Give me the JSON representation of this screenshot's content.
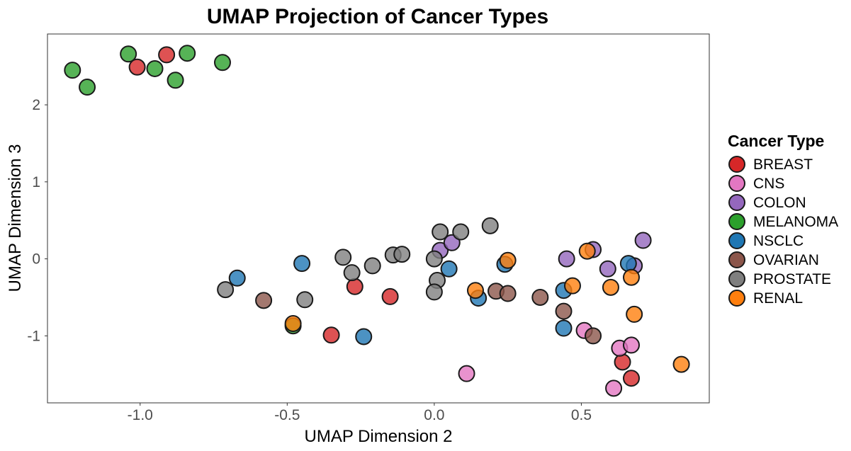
{
  "chart_data": {
    "type": "scatter",
    "title": "UMAP Projection of Cancer Types",
    "xlabel": "UMAP Dimension 2",
    "ylabel": "UMAP Dimension 3",
    "xlim": [
      -1.315,
      0.935
    ],
    "ylim": [
      -1.87,
      2.92
    ],
    "xticks": [
      -1.0,
      -0.5,
      0.0,
      0.5
    ],
    "xtick_labels": [
      "-1.0",
      "-0.5",
      "0.0",
      "0.5"
    ],
    "yticks": [
      -1,
      0,
      1,
      2
    ],
    "ytick_labels": [
      "-1",
      "0",
      "1",
      "2"
    ],
    "grid": false,
    "legend": {
      "title": "Cancer Type",
      "placement": "right"
    },
    "series": [
      {
        "name": "BREAST",
        "color": "#d62728",
        "points": [
          {
            "x": -1.01,
            "y": 2.49
          },
          {
            "x": -0.91,
            "y": 2.65
          },
          {
            "x": -0.27,
            "y": -0.36
          },
          {
            "x": -0.15,
            "y": -0.49
          },
          {
            "x": -0.35,
            "y": -0.99
          },
          {
            "x": 0.64,
            "y": -1.34
          },
          {
            "x": 0.67,
            "y": -1.55
          }
        ]
      },
      {
        "name": "CNS",
        "color": "#e377c2",
        "points": [
          {
            "x": 0.11,
            "y": -1.49
          },
          {
            "x": 0.51,
            "y": -0.93
          },
          {
            "x": 0.63,
            "y": -1.16
          },
          {
            "x": 0.67,
            "y": -1.12
          },
          {
            "x": 0.61,
            "y": -1.68
          }
        ]
      },
      {
        "name": "COLON",
        "color": "#9467bd",
        "points": [
          {
            "x": 0.02,
            "y": 0.11
          },
          {
            "x": 0.06,
            "y": 0.21
          },
          {
            "x": 0.45,
            "y": 0.0
          },
          {
            "x": 0.54,
            "y": 0.12
          },
          {
            "x": 0.59,
            "y": -0.13
          },
          {
            "x": 0.68,
            "y": -0.09
          },
          {
            "x": 0.71,
            "y": 0.24
          }
        ]
      },
      {
        "name": "MELANOMA",
        "color": "#2ca02c",
        "points": [
          {
            "x": -1.23,
            "y": 2.45
          },
          {
            "x": -1.18,
            "y": 2.23
          },
          {
            "x": -1.04,
            "y": 2.66
          },
          {
            "x": -0.95,
            "y": 2.47
          },
          {
            "x": -0.88,
            "y": 2.32
          },
          {
            "x": -0.84,
            "y": 2.67
          },
          {
            "x": -0.72,
            "y": 2.55
          },
          {
            "x": -0.48,
            "y": -0.87
          }
        ]
      },
      {
        "name": "NSCLC",
        "color": "#1f77b4",
        "points": [
          {
            "x": -0.67,
            "y": -0.25
          },
          {
            "x": -0.45,
            "y": -0.06
          },
          {
            "x": -0.24,
            "y": -1.01
          },
          {
            "x": 0.05,
            "y": -0.13
          },
          {
            "x": 0.15,
            "y": -0.51
          },
          {
            "x": 0.24,
            "y": -0.07
          },
          {
            "x": 0.44,
            "y": -0.41
          },
          {
            "x": 0.44,
            "y": -0.9
          },
          {
            "x": 0.66,
            "y": -0.06
          }
        ]
      },
      {
        "name": "OVARIAN",
        "color": "#8c564b",
        "points": [
          {
            "x": -0.58,
            "y": -0.54
          },
          {
            "x": 0.21,
            "y": -0.42
          },
          {
            "x": 0.25,
            "y": -0.45
          },
          {
            "x": 0.36,
            "y": -0.5
          },
          {
            "x": 0.44,
            "y": -0.68
          },
          {
            "x": 0.54,
            "y": -1.0
          }
        ]
      },
      {
        "name": "PROSTATE",
        "color": "#7f7f7f",
        "points": [
          {
            "x": -0.71,
            "y": -0.4
          },
          {
            "x": -0.44,
            "y": -0.53
          },
          {
            "x": -0.31,
            "y": 0.02
          },
          {
            "x": -0.28,
            "y": -0.18
          },
          {
            "x": -0.21,
            "y": -0.09
          },
          {
            "x": -0.14,
            "y": 0.05
          },
          {
            "x": -0.11,
            "y": 0.06
          },
          {
            "x": 0.0,
            "y": 0.0
          },
          {
            "x": 0.01,
            "y": -0.28
          },
          {
            "x": 0.0,
            "y": -0.43
          },
          {
            "x": 0.02,
            "y": 0.35
          },
          {
            "x": 0.09,
            "y": 0.35
          },
          {
            "x": 0.19,
            "y": 0.43
          }
        ]
      },
      {
        "name": "RENAL",
        "color": "#ff7f0e",
        "points": [
          {
            "x": -0.48,
            "y": -0.84
          },
          {
            "x": 0.14,
            "y": -0.41
          },
          {
            "x": 0.25,
            "y": -0.02
          },
          {
            "x": 0.47,
            "y": -0.35
          },
          {
            "x": 0.52,
            "y": 0.1
          },
          {
            "x": 0.6,
            "y": -0.37
          },
          {
            "x": 0.67,
            "y": -0.24
          },
          {
            "x": 0.68,
            "y": -0.72
          },
          {
            "x": 0.84,
            "y": -1.37
          }
        ]
      }
    ]
  }
}
